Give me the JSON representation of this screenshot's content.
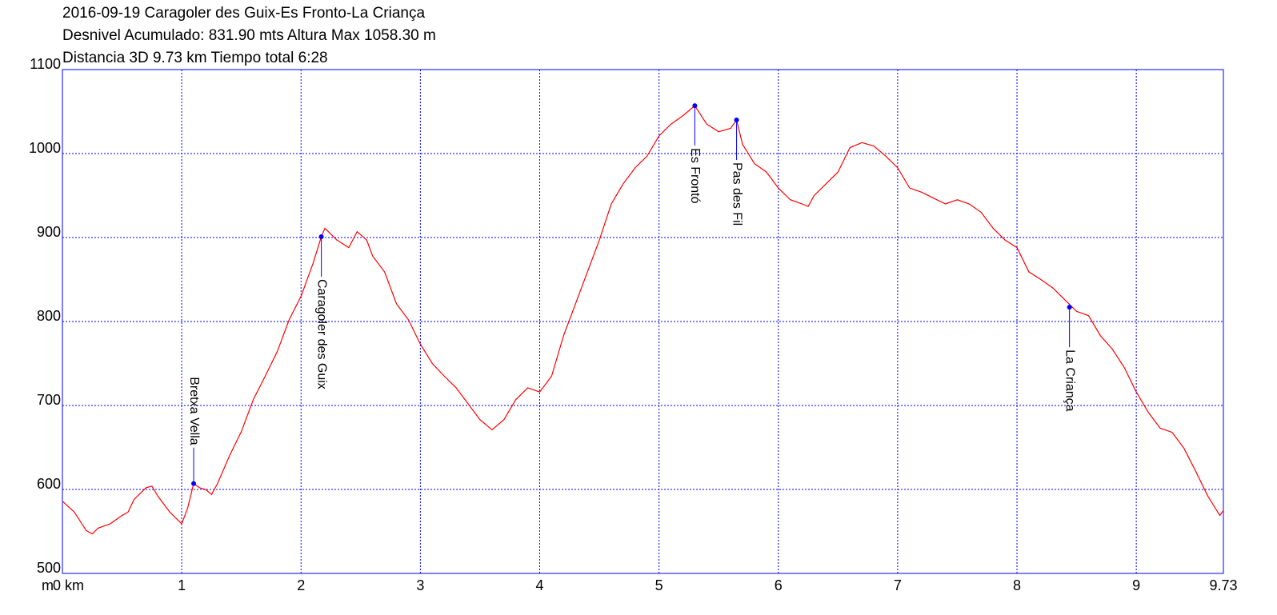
{
  "chart_data": {
    "type": "line",
    "title": "2016-09-19 Caragoler des Guix-Es Fronto-La Criança",
    "subtitle": "Desnivel Acumulado: 831.90 mts  Altura Max 1058.30 m",
    "summary": "Distancia 3D 9.73 km  Tiempo total 6:28",
    "ylabel": "m",
    "color": "#ff0000",
    "grid": true,
    "x": [
      0,
      0.1,
      0.2,
      0.25,
      0.3,
      0.4,
      0.5,
      0.55,
      0.6,
      0.7,
      0.75,
      0.8,
      0.9,
      1.0,
      1.05,
      1.1,
      1.15,
      1.2,
      1.25,
      1.3,
      1.4,
      1.5,
      1.6,
      1.7,
      1.8,
      1.9,
      2.0,
      2.1,
      2.17,
      2.2,
      2.3,
      2.4,
      2.47,
      2.55,
      2.6,
      2.7,
      2.8,
      2.9,
      3.0,
      3.1,
      3.2,
      3.3,
      3.4,
      3.5,
      3.6,
      3.7,
      3.8,
      3.9,
      4.0,
      4.1,
      4.2,
      4.3,
      4.4,
      4.5,
      4.6,
      4.7,
      4.8,
      4.9,
      5.0,
      5.1,
      5.2,
      5.3,
      5.4,
      5.5,
      5.6,
      5.65,
      5.7,
      5.8,
      5.9,
      6.0,
      6.1,
      6.2,
      6.25,
      6.3,
      6.4,
      6.5,
      6.6,
      6.7,
      6.8,
      6.9,
      7.0,
      7.1,
      7.2,
      7.3,
      7.4,
      7.5,
      7.6,
      7.7,
      7.8,
      7.9,
      8.0,
      8.1,
      8.2,
      8.3,
      8.4,
      8.5,
      8.6,
      8.7,
      8.8,
      8.9,
      9.0,
      9.1,
      9.2,
      9.3,
      9.4,
      9.5,
      9.6,
      9.7,
      9.73
    ],
    "values": [
      586,
      573,
      551,
      547,
      554,
      559,
      569,
      573,
      588,
      602,
      604,
      592,
      573,
      559,
      578,
      607,
      602,
      600,
      594,
      607,
      640,
      669,
      707,
      735,
      764,
      802,
      830,
      869,
      901,
      911,
      897,
      888,
      907,
      897,
      878,
      859,
      821,
      802,
      773,
      750,
      735,
      721,
      702,
      683,
      671,
      683,
      707,
      721,
      716,
      735,
      783,
      821,
      859,
      897,
      940,
      964,
      983,
      997,
      1021,
      1035,
      1045,
      1057,
      1035,
      1026,
      1030,
      1040,
      1011,
      988,
      978,
      959,
      945,
      940,
      937,
      950,
      964,
      978,
      1007,
      1013,
      1009,
      997,
      983,
      959,
      954,
      947,
      940,
      945,
      940,
      930,
      911,
      897,
      888,
      859,
      850,
      840,
      826,
      812,
      807,
      783,
      767,
      745,
      716,
      692,
      673,
      668,
      649,
      621,
      592,
      569,
      575
    ],
    "annotations": [
      {
        "label": "Bretxa Vella",
        "x": 1.1,
        "y": 607
      },
      {
        "label": "Caragoler des Guix",
        "x": 2.17,
        "y": 901
      },
      {
        "label": "Es Frontó",
        "x": 5.3,
        "y": 1057
      },
      {
        "label": "Pas des Fil",
        "x": 5.65,
        "y": 1040
      },
      {
        "label": "La Criança",
        "x": 8.44,
        "y": 817
      }
    ],
    "xlim": [
      0,
      9.73
    ],
    "xticks": [
      {
        "value": 0,
        "label": "0 km"
      },
      1,
      2,
      3,
      4,
      5,
      6,
      7,
      8,
      9,
      9.73
    ],
    "ylim": [
      500,
      1100
    ],
    "yticks": [
      500,
      600,
      700,
      800,
      900,
      1000,
      1100
    ]
  }
}
